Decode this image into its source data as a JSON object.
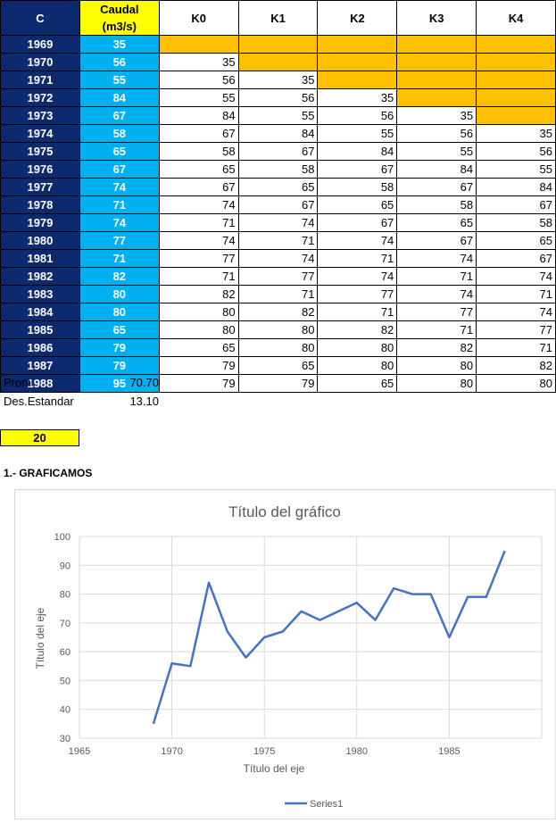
{
  "table": {
    "headers": [
      "C",
      "Caudal (m3/s)",
      "K0",
      "K1",
      "K2",
      "K3",
      "K4"
    ],
    "rows": [
      {
        "year": "1969",
        "q": "35",
        "k": [
          "",
          "",
          "",
          "",
          ""
        ]
      },
      {
        "year": "1970",
        "q": "56",
        "k": [
          "35",
          "",
          "",
          "",
          ""
        ]
      },
      {
        "year": "1971",
        "q": "55",
        "k": [
          "56",
          "35",
          "",
          "",
          ""
        ]
      },
      {
        "year": "1972",
        "q": "84",
        "k": [
          "55",
          "56",
          "35",
          "",
          ""
        ]
      },
      {
        "year": "1973",
        "q": "67",
        "k": [
          "84",
          "55",
          "56",
          "35",
          ""
        ]
      },
      {
        "year": "1974",
        "q": "58",
        "k": [
          "67",
          "84",
          "55",
          "56",
          "35"
        ]
      },
      {
        "year": "1975",
        "q": "65",
        "k": [
          "58",
          "67",
          "84",
          "55",
          "56"
        ]
      },
      {
        "year": "1976",
        "q": "67",
        "k": [
          "65",
          "58",
          "67",
          "84",
          "55"
        ]
      },
      {
        "year": "1977",
        "q": "74",
        "k": [
          "67",
          "65",
          "58",
          "67",
          "84"
        ]
      },
      {
        "year": "1978",
        "q": "71",
        "k": [
          "74",
          "67",
          "65",
          "58",
          "67"
        ]
      },
      {
        "year": "1979",
        "q": "74",
        "k": [
          "71",
          "74",
          "67",
          "65",
          "58"
        ]
      },
      {
        "year": "1980",
        "q": "77",
        "k": [
          "74",
          "71",
          "74",
          "67",
          "65"
        ]
      },
      {
        "year": "1981",
        "q": "71",
        "k": [
          "77",
          "74",
          "71",
          "74",
          "67"
        ]
      },
      {
        "year": "1982",
        "q": "82",
        "k": [
          "71",
          "77",
          "74",
          "71",
          "74"
        ]
      },
      {
        "year": "1983",
        "q": "80",
        "k": [
          "82",
          "71",
          "77",
          "74",
          "71"
        ]
      },
      {
        "year": "1984",
        "q": "80",
        "k": [
          "80",
          "82",
          "71",
          "77",
          "74"
        ]
      },
      {
        "year": "1985",
        "q": "65",
        "k": [
          "80",
          "80",
          "82",
          "71",
          "77"
        ]
      },
      {
        "year": "1986",
        "q": "79",
        "k": [
          "65",
          "80",
          "80",
          "82",
          "71"
        ]
      },
      {
        "year": "1987",
        "q": "79",
        "k": [
          "79",
          "65",
          "80",
          "80",
          "82"
        ]
      },
      {
        "year": "1988",
        "q": "95",
        "k": [
          "79",
          "79",
          "65",
          "80",
          "80"
        ]
      }
    ]
  },
  "stats": {
    "prom_label": "Prom",
    "prom_value": "70.70",
    "std_label": "Des.Estandar",
    "std_value": "13.10"
  },
  "highlight_value": "20",
  "section_title": "1.- GRAFICAMOS",
  "colors": {
    "year_bg": "#0e2a6e",
    "caudal_bg": "#00b0f0",
    "header_caudal": "#ffff00",
    "blank_cell": "#ffc000",
    "series_line": "#4472c4"
  },
  "chart_data": {
    "type": "line",
    "title": "Título del gráfico",
    "xlabel": "Título del eje",
    "ylabel": "Título del eje",
    "xlim": [
      1965,
      1990
    ],
    "ylim": [
      30,
      100
    ],
    "xticks": [
      1965,
      1970,
      1975,
      1980,
      1985
    ],
    "yticks": [
      30,
      40,
      50,
      60,
      70,
      80,
      90,
      100
    ],
    "grid": true,
    "legend": "bottom",
    "series": [
      {
        "name": "Series1",
        "x": [
          1969,
          1970,
          1971,
          1972,
          1973,
          1974,
          1975,
          1976,
          1977,
          1978,
          1979,
          1980,
          1981,
          1982,
          1983,
          1984,
          1985,
          1986,
          1987,
          1988
        ],
        "y": [
          35,
          56,
          55,
          84,
          67,
          58,
          65,
          67,
          74,
          71,
          74,
          77,
          71,
          82,
          80,
          80,
          65,
          79,
          79,
          95
        ]
      }
    ]
  }
}
